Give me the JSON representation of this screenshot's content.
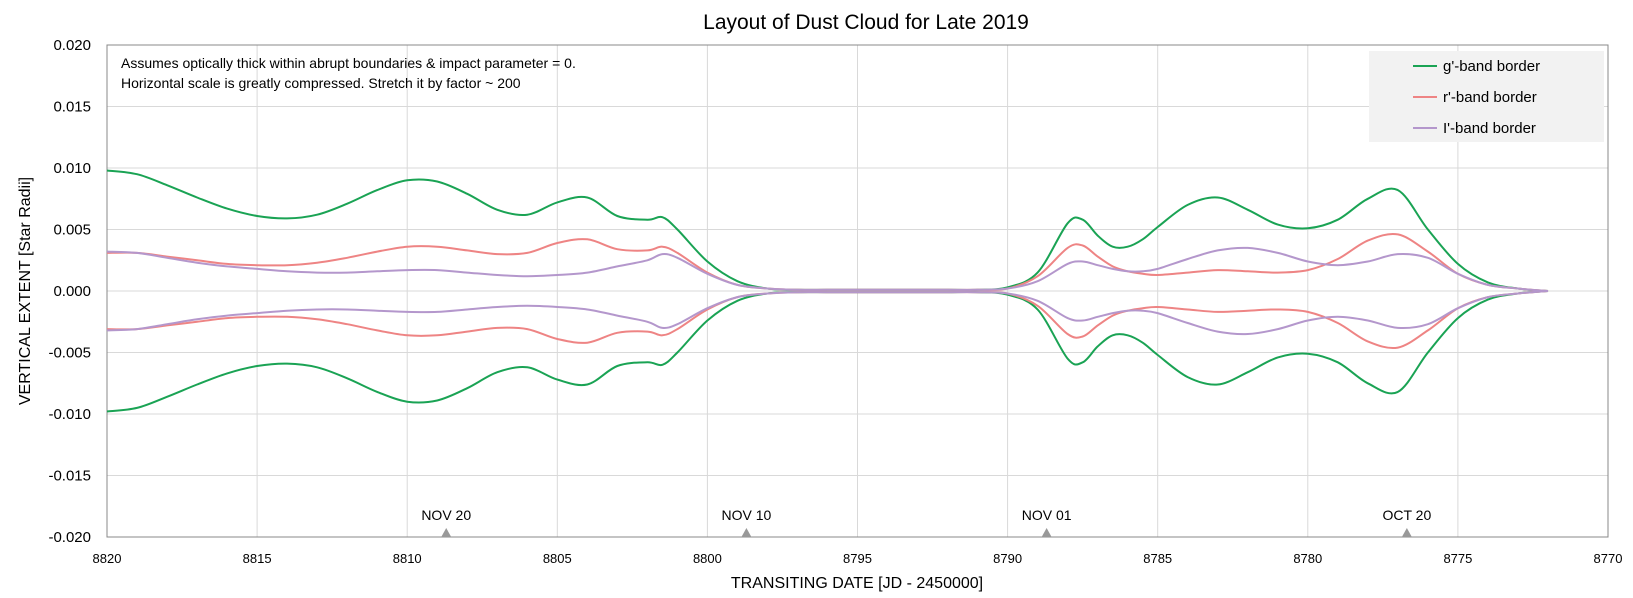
{
  "chart_data": {
    "type": "line",
    "title": "Layout of Dust Cloud for Late 2019",
    "xlabel": "TRANSITING DATE [JD - 2450000]",
    "ylabel": "VERTICAL EXTENT [Star Radii]",
    "xlim": [
      8820,
      8770
    ],
    "ylim": [
      -0.02,
      0.02
    ],
    "x_reversed": true,
    "x_ticks": [
      8820,
      8815,
      8810,
      8805,
      8800,
      8795,
      8790,
      8785,
      8780,
      8775,
      8770
    ],
    "y_ticks": [
      "0.020",
      "0.015",
      "0.010",
      "0.005",
      "0.000",
      "-0.005",
      "-0.010",
      "-0.015",
      "-0.020"
    ],
    "y_tick_values": [
      0.02,
      0.015,
      0.01,
      0.005,
      0,
      -0.005,
      -0.01,
      -0.015,
      -0.02
    ],
    "grid": true,
    "legend_position": "top-right",
    "annotations": [
      "Assumes optically thick within abrupt boundaries & impact parameter = 0.",
      "Horizontal scale is greatly compressed. Stretch it by factor ~ 200"
    ],
    "date_markers": [
      {
        "label": "NOV 20",
        "x": 8808.7
      },
      {
        "label": "NOV 10",
        "x": 8798.7
      },
      {
        "label": "NOV 01",
        "x": 8788.7
      },
      {
        "label": "OCT 20",
        "x": 8776.7
      }
    ],
    "x": [
      8820,
      8819,
      8818,
      8817,
      8816,
      8815,
      8814,
      8813,
      8812,
      8811,
      8810,
      8809,
      8808,
      8807,
      8806,
      8805,
      8804,
      8803,
      8802,
      8801.5,
      8801,
      8800,
      8799,
      8798,
      8797,
      8796,
      8795,
      8794,
      8793,
      8792,
      8791,
      8790,
      8789,
      8788,
      8787.5,
      8787,
      8786.5,
      8786,
      8785.5,
      8785,
      8784,
      8783,
      8782,
      8781,
      8780,
      8779,
      8778,
      8777,
      8776,
      8775,
      8774,
      8773,
      8772
    ],
    "series": [
      {
        "name": "g'-band border",
        "color": "#1aa354",
        "values": [
          0.0098,
          0.0095,
          0.0086,
          0.0076,
          0.0067,
          0.0061,
          0.0059,
          0.0062,
          0.0071,
          0.0082,
          0.009,
          0.0089,
          0.0079,
          0.0066,
          0.0062,
          0.0072,
          0.0076,
          0.0061,
          0.0058,
          0.006,
          0.005,
          0.0024,
          0.0008,
          0.0002,
          0.0001,
          0.0001,
          0.0001,
          0.0001,
          0.0001,
          0.0001,
          0.0001,
          0.0003,
          0.0015,
          0.0055,
          0.0058,
          0.0045,
          0.0036,
          0.0036,
          0.0042,
          0.0052,
          0.007,
          0.0076,
          0.0066,
          0.0054,
          0.0051,
          0.0058,
          0.0075,
          0.0082,
          0.005,
          0.0022,
          0.0007,
          0.0002,
          0.0
        ]
      },
      {
        "name": "g'-band border",
        "color": "#1aa354",
        "values": [
          -0.0098,
          -0.0095,
          -0.0086,
          -0.0076,
          -0.0067,
          -0.0061,
          -0.0059,
          -0.0062,
          -0.0071,
          -0.0082,
          -0.009,
          -0.0089,
          -0.0079,
          -0.0066,
          -0.0062,
          -0.0072,
          -0.0076,
          -0.0061,
          -0.0058,
          -0.006,
          -0.005,
          -0.0024,
          -0.0008,
          -0.0002,
          -0.0001,
          -0.0001,
          -0.0001,
          -0.0001,
          -0.0001,
          -0.0001,
          -0.0001,
          -0.0003,
          -0.0015,
          -0.0055,
          -0.0058,
          -0.0045,
          -0.0036,
          -0.0036,
          -0.0042,
          -0.0052,
          -0.007,
          -0.0076,
          -0.0066,
          -0.0054,
          -0.0051,
          -0.0058,
          -0.0075,
          -0.0082,
          -0.005,
          -0.0022,
          -0.0007,
          -0.0002,
          -0.0
        ]
      },
      {
        "name": "r'-band border",
        "color": "#ee8484",
        "values": [
          0.0031,
          0.0031,
          0.0028,
          0.0025,
          0.0022,
          0.0021,
          0.0021,
          0.0023,
          0.0027,
          0.0032,
          0.0036,
          0.0036,
          0.0033,
          0.003,
          0.0031,
          0.0039,
          0.0042,
          0.0034,
          0.0033,
          0.0036,
          0.0031,
          0.0015,
          0.0005,
          0.0002,
          0.0001,
          0.0001,
          0.0001,
          0.0001,
          0.0001,
          0.0001,
          0.0001,
          0.0002,
          0.0012,
          0.0035,
          0.0037,
          0.0028,
          0.002,
          0.0016,
          0.0014,
          0.0013,
          0.0015,
          0.0017,
          0.0016,
          0.0015,
          0.0017,
          0.0026,
          0.0041,
          0.0046,
          0.0032,
          0.0014,
          0.0005,
          0.0002,
          0.0
        ]
      },
      {
        "name": "r'-band border",
        "color": "#ee8484",
        "values": [
          -0.0031,
          -0.0031,
          -0.0028,
          -0.0025,
          -0.0022,
          -0.0021,
          -0.0021,
          -0.0023,
          -0.0027,
          -0.0032,
          -0.0036,
          -0.0036,
          -0.0033,
          -0.003,
          -0.0031,
          -0.0039,
          -0.0042,
          -0.0034,
          -0.0033,
          -0.0036,
          -0.0031,
          -0.0015,
          -0.0005,
          -0.0002,
          -0.0001,
          -0.0001,
          -0.0001,
          -0.0001,
          -0.0001,
          -0.0001,
          -0.0001,
          -0.0002,
          -0.0012,
          -0.0035,
          -0.0037,
          -0.0028,
          -0.002,
          -0.0016,
          -0.0014,
          -0.0013,
          -0.0015,
          -0.0017,
          -0.0016,
          -0.0015,
          -0.0017,
          -0.0026,
          -0.0041,
          -0.0046,
          -0.0032,
          -0.0014,
          -0.0005,
          -0.0002,
          -0.0
        ]
      },
      {
        "name": "I'-band border",
        "color": "#b497cc",
        "values": [
          0.0032,
          0.0031,
          0.0027,
          0.0023,
          0.002,
          0.0018,
          0.0016,
          0.0015,
          0.0015,
          0.0016,
          0.0017,
          0.0017,
          0.0015,
          0.0013,
          0.0012,
          0.0013,
          0.0015,
          0.002,
          0.0025,
          0.003,
          0.0027,
          0.0014,
          0.0005,
          0.0002,
          0.0001,
          0.0001,
          0.0001,
          0.0001,
          0.0001,
          0.0001,
          0.0001,
          0.0002,
          0.0008,
          0.0022,
          0.0024,
          0.0021,
          0.0018,
          0.0016,
          0.0016,
          0.0018,
          0.0026,
          0.0033,
          0.0035,
          0.0031,
          0.0024,
          0.0021,
          0.0024,
          0.003,
          0.0027,
          0.0014,
          0.0005,
          0.0002,
          0.0
        ]
      },
      {
        "name": "I'-band border",
        "color": "#b497cc",
        "values": [
          -0.0032,
          -0.0031,
          -0.0027,
          -0.0023,
          -0.002,
          -0.0018,
          -0.0016,
          -0.0015,
          -0.0015,
          -0.0016,
          -0.0017,
          -0.0017,
          -0.0015,
          -0.0013,
          -0.0012,
          -0.0013,
          -0.0015,
          -0.002,
          -0.0025,
          -0.003,
          -0.0027,
          -0.0014,
          -0.0005,
          -0.0002,
          -0.0001,
          -0.0001,
          -0.0001,
          -0.0001,
          -0.0001,
          -0.0001,
          -0.0001,
          -0.0002,
          -0.0008,
          -0.0022,
          -0.0024,
          -0.0021,
          -0.0018,
          -0.0016,
          -0.0016,
          -0.0018,
          -0.0026,
          -0.0033,
          -0.0035,
          -0.0031,
          -0.0024,
          -0.0021,
          -0.0024,
          -0.003,
          -0.0027,
          -0.0014,
          -0.0005,
          -0.0002,
          -0.0
        ]
      }
    ],
    "legend": [
      {
        "label": "g'-band border",
        "color": "#1aa354"
      },
      {
        "label": "r'-band border",
        "color": "#ee8484"
      },
      {
        "label": "I'-band border",
        "color": "#b497cc"
      }
    ]
  }
}
